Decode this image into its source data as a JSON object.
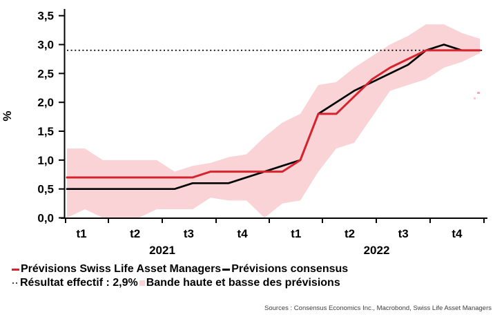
{
  "chart_data": {
    "type": "line",
    "title": "",
    "ylabel": "%",
    "ylim": [
      0,
      3.5
    ],
    "grid": false,
    "y_ticks": [
      "0,0",
      "0,5",
      "1,0",
      "1,5",
      "2,0",
      "2,5",
      "3,0",
      "3,5"
    ],
    "x_unit": "monthly, Jan 2021 - Dec 2022",
    "x_quarter_labels": [
      "t1",
      "t2",
      "t3",
      "t4",
      "t1",
      "t2",
      "t3",
      "t4"
    ],
    "year_labels": [
      "2021",
      "2022"
    ],
    "series": [
      {
        "name": "Prévisions Swiss Life Asset Managers",
        "color": "#d7232e",
        "values": [
          0.7,
          0.7,
          0.7,
          0.7,
          0.7,
          0.7,
          0.7,
          0.7,
          0.8,
          0.8,
          0.8,
          0.8,
          0.8,
          1.0,
          1.8,
          1.8,
          2.1,
          2.4,
          2.6,
          2.75,
          2.9,
          2.9,
          2.9,
          2.9
        ]
      },
      {
        "name": "Prévisions consensus",
        "color": "#000000",
        "values": [
          0.5,
          0.5,
          0.5,
          0.5,
          0.5,
          0.5,
          0.5,
          0.6,
          0.6,
          0.6,
          0.7,
          0.8,
          0.9,
          1.0,
          1.8,
          2.0,
          2.2,
          2.35,
          2.5,
          2.65,
          2.9,
          3.0,
          2.9,
          2.9
        ]
      }
    ],
    "band": {
      "name": "Bande haute et basse des prévisions",
      "color": "#f9d3d6",
      "high": [
        1.2,
        1.2,
        1.0,
        1.0,
        1.0,
        1.0,
        0.8,
        0.9,
        0.95,
        1.05,
        1.1,
        1.4,
        1.65,
        1.8,
        2.3,
        2.35,
        2.6,
        2.8,
        3.0,
        3.15,
        3.35,
        3.35,
        3.2,
        3.1
      ],
      "low": [
        0.0,
        0.15,
        0.0,
        0.0,
        0.0,
        0.15,
        0.15,
        0.15,
        0.35,
        0.3,
        0.3,
        0.0,
        0.25,
        0.3,
        0.8,
        1.2,
        1.3,
        1.75,
        2.2,
        2.3,
        2.4,
        2.6,
        2.7,
        2.85
      ]
    },
    "reference_line": {
      "label": "Résultat effectif : 2,9%",
      "value": 2.9,
      "style": "dotted",
      "color": "#1a1a1a"
    },
    "legend_position": "bottom"
  },
  "legend": {
    "row1": [
      {
        "marker": "red-dash",
        "label": "Prévisions Swiss Life Asset Managers"
      },
      {
        "marker": "black-dash",
        "label": "Prévisions consensus"
      }
    ],
    "row2": [
      {
        "marker": "dotted",
        "label": "Résultat effectif : 2,9%"
      },
      {
        "marker": "pink-square",
        "label": "Bande haute et basse des prévisions"
      }
    ]
  },
  "source": "Sources : Consensus Economics Inc., Macrobond, Swiss Life Asset Managers",
  "colors": {
    "red": "#d7232e",
    "black": "#000000",
    "band_pink": "#f9d3d6",
    "source_text": "#3d3d3d"
  }
}
